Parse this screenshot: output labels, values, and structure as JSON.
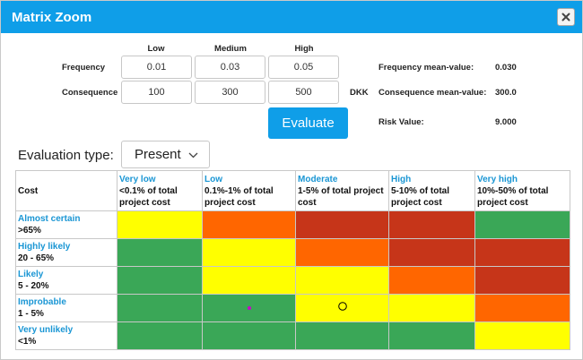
{
  "window": {
    "title": "Matrix Zoom"
  },
  "columns": {
    "low": "Low",
    "medium": "Medium",
    "high": "High"
  },
  "rows": {
    "frequency": {
      "label": "Frequency",
      "low": "0.01",
      "medium": "0.03",
      "high": "0.05"
    },
    "consequence": {
      "label": "Consequence",
      "low": "100",
      "medium": "300",
      "high": "500",
      "unit": "DKK"
    }
  },
  "summary": {
    "freq_label": "Frequency mean-value:",
    "freq_value": "0.030",
    "cons_label": "Consequence mean-value:",
    "cons_value": "300.0",
    "risk_label": "Risk Value:",
    "risk_value": "9.000"
  },
  "evaluate_label": "Evaluate",
  "evaluation": {
    "label": "Evaluation type:",
    "selected": "Present"
  },
  "matrix": {
    "corner": "Cost",
    "cost_columns": [
      {
        "name": "Very low",
        "desc": "<0.1% of total project cost"
      },
      {
        "name": "Low",
        "desc": "0.1%-1% of total project cost"
      },
      {
        "name": "Moderate",
        "desc": "1-5% of total project cost"
      },
      {
        "name": "High",
        "desc": "5-10% of total project cost"
      },
      {
        "name": "Very high",
        "desc": "10%-50% of total project cost"
      }
    ],
    "likelihood_rows": [
      {
        "name": "Almost certain",
        "range": ">65%",
        "cells": [
          "yellow",
          "orange",
          "red",
          "red",
          "green"
        ]
      },
      {
        "name": "Highly likely",
        "range": "20 - 65%",
        "cells": [
          "green",
          "yellow",
          "orange",
          "red",
          "red"
        ]
      },
      {
        "name": "Likely",
        "range": "5 - 20%",
        "cells": [
          "green",
          "yellow",
          "yellow",
          "orange",
          "red"
        ]
      },
      {
        "name": "Improbable",
        "range": "1 - 5%",
        "cells": [
          "green",
          "green",
          "yellow",
          "yellow",
          "orange"
        ]
      },
      {
        "name": "Very unlikely",
        "range": "<1%",
        "cells": [
          "green",
          "green",
          "green",
          "green",
          "yellow"
        ]
      }
    ],
    "colors": {
      "green": "#3aa757",
      "yellow": "#ffff00",
      "orange": "#ff6600",
      "red": "#c63519"
    },
    "markers": [
      {
        "row": 3,
        "col": 1,
        "type": "dot",
        "color": "#cc00cc"
      },
      {
        "row": 3,
        "col": 2,
        "type": "circle",
        "color": "#000000"
      }
    ]
  }
}
